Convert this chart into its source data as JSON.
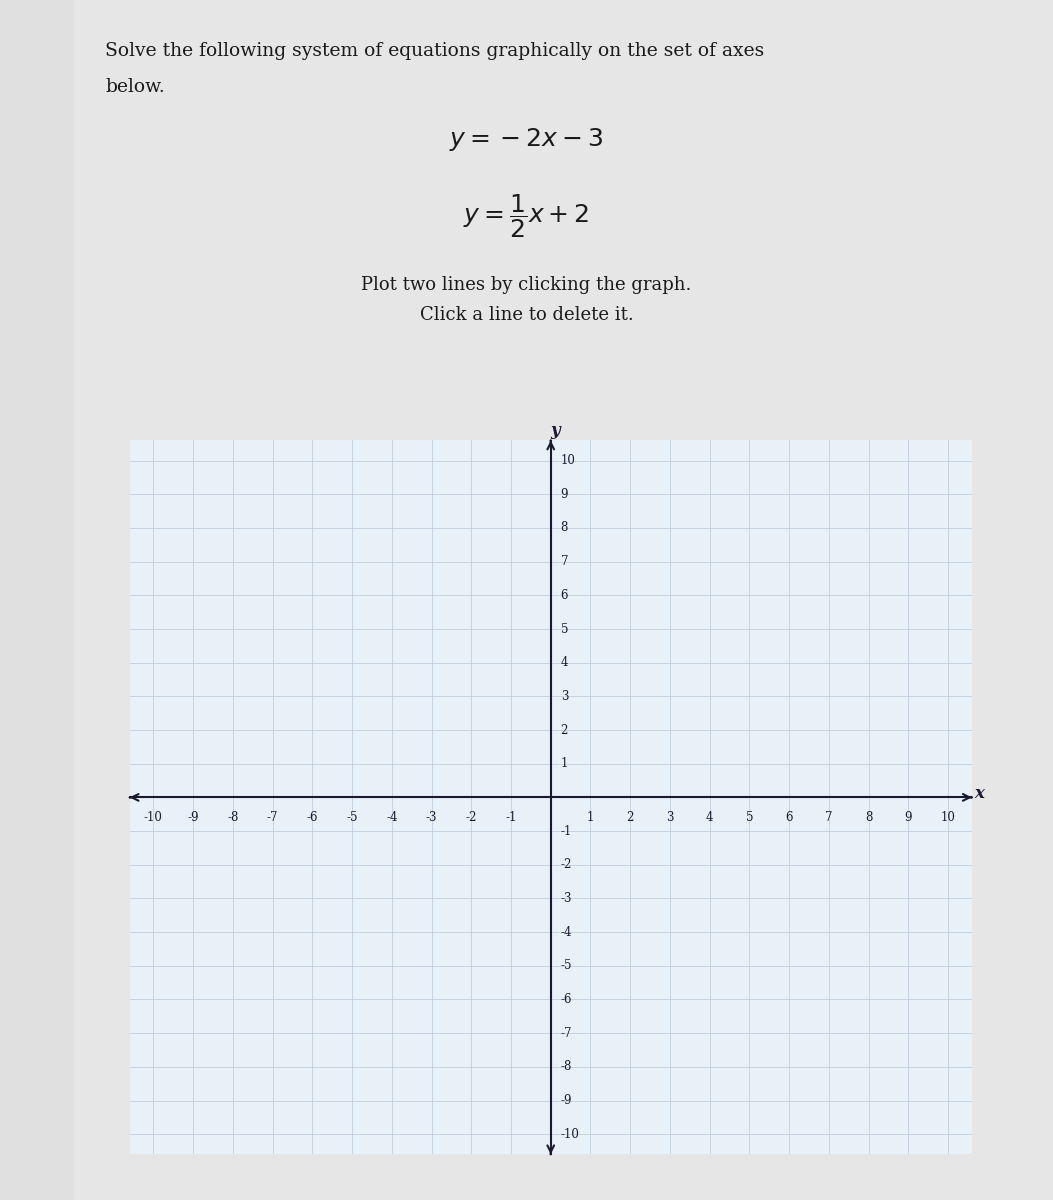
{
  "title_line1": "Solve the following system of equations graphically on the set of axes",
  "title_line2": "below.",
  "eq1": "$y = -2x - 3$",
  "eq2": "$y = \\dfrac{1}{2}x + 2$",
  "instruction1": "Plot two lines by clicking the graph.",
  "instruction2": "Click a line to delete it.",
  "xlim": [
    -10,
    10
  ],
  "ylim": [
    -10,
    10
  ],
  "xlabel": "x",
  "ylabel": "y",
  "grid_color": "#b8c8d8",
  "axis_color": "#1a1a2e",
  "graph_bg": "#e8f0f8",
  "page_bg": "#e0e0e0",
  "white_panel_bg": "#e8e8e8",
  "tick_fontsize": 8.5,
  "label_fontsize": 12,
  "text_color": "#1a1a1a",
  "title_fontsize": 13.5,
  "eq_fontsize": 18,
  "instr_fontsize": 13
}
